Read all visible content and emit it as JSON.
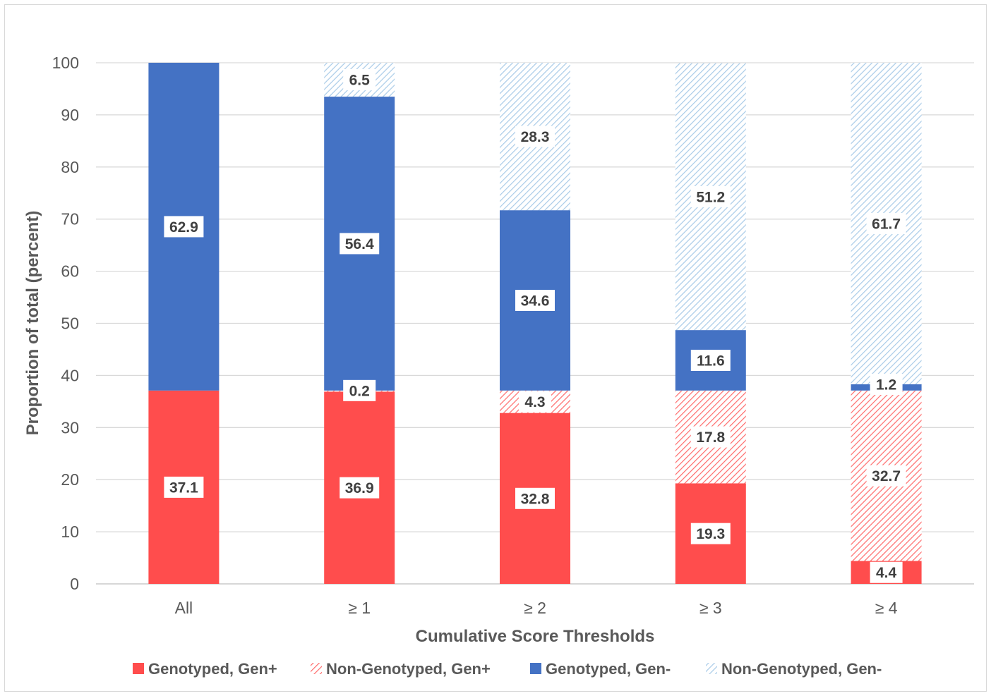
{
  "chart_data": {
    "type": "bar",
    "stacked": true,
    "title": "",
    "xlabel": "Cumulative Score Thresholds",
    "ylabel": "Proportion of total (percent)",
    "ylim": [
      0,
      100
    ],
    "yticks": [
      "0",
      "10",
      "20",
      "30",
      "40",
      "50",
      "60",
      "70",
      "80",
      "90",
      "100"
    ],
    "grid": true,
    "legend_position": "bottom",
    "categories": [
      "All",
      "≥ 1",
      "≥ 2",
      "≥ 3",
      "≥ 4"
    ],
    "series": [
      {
        "name": "Genotyped, Gen+",
        "color": "#ff4d4d",
        "pattern": "solid",
        "values": [
          37.1,
          36.9,
          32.8,
          19.3,
          4.4
        ],
        "labels": [
          "37.1",
          "36.9",
          "32.8",
          "19.3",
          "4.4"
        ]
      },
      {
        "name": "Non-Genotyped, Gen+",
        "color": "#ff4d4d",
        "pattern": "hatched",
        "values": [
          0,
          0.2,
          4.3,
          17.8,
          32.7
        ],
        "labels": [
          "",
          "0.2",
          "4.3",
          "17.8",
          "32.7"
        ]
      },
      {
        "name": "Genotyped, Gen-",
        "color": "#4472c4",
        "pattern": "solid",
        "values": [
          62.9,
          56.4,
          34.6,
          11.6,
          1.2
        ],
        "labels": [
          "62.9",
          "56.4",
          "34.6",
          "11.6",
          "1.2"
        ]
      },
      {
        "name": "Non-Genotyped, Gen-",
        "color": "#9dc3e6",
        "pattern": "hatched",
        "values": [
          0,
          6.5,
          28.3,
          51.2,
          61.7
        ],
        "labels": [
          "",
          "6.5",
          "28.3",
          "51.2",
          "61.7"
        ]
      }
    ]
  }
}
